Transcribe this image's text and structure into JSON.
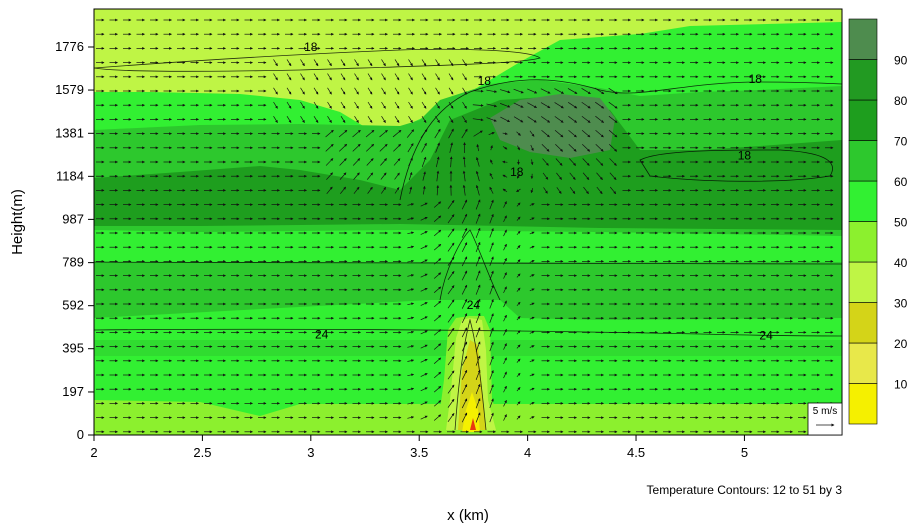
{
  "chart_data": {
    "type": "heatmap",
    "xlabel": "x (km)",
    "ylabel": "Height(m)",
    "xlim": [
      2,
      5.45
    ],
    "ylim": [
      0,
      1950
    ],
    "x_ticks": [
      2,
      2.5,
      3,
      3.5,
      4,
      4.5,
      5
    ],
    "x_tick_labels": [
      "2",
      "2.5",
      "3",
      "3.5",
      "4",
      "4.5",
      "5"
    ],
    "y_ticks": [
      0,
      197,
      395,
      592,
      789,
      987,
      1184,
      1381,
      1579,
      1776
    ],
    "y_tick_labels": [
      "0",
      "197",
      "395",
      "592",
      "789",
      "987",
      "1184",
      "1381",
      "1579",
      "1776"
    ],
    "colorbar": {
      "levels": [
        10,
        20,
        30,
        40,
        50,
        60,
        70,
        80,
        90
      ],
      "level_labels": [
        "10",
        "20",
        "30",
        "40",
        "50",
        "60",
        "70",
        "80",
        "90"
      ],
      "colors": [
        "#f5f000",
        "#e8e84a",
        "#d4d418",
        "#bff545",
        "#8cf02e",
        "#32f032",
        "#2dc82d",
        "#1e9e1e",
        "#229a22",
        "#4e8c4e"
      ]
    },
    "contour_note": "Temperature Contours: 12 to 51 by 3",
    "contour_labels": [
      {
        "text": "18",
        "x": 3.0,
        "y": 1776
      },
      {
        "text": "18",
        "x": 3.8,
        "y": 1620
      },
      {
        "text": "18",
        "x": 5.05,
        "y": 1630
      },
      {
        "text": "18",
        "x": 5.0,
        "y": 1280
      },
      {
        "text": "18",
        "x": 3.95,
        "y": 1205
      },
      {
        "text": "24",
        "x": 3.75,
        "y": 595
      },
      {
        "text": "24",
        "x": 3.05,
        "y": 460
      },
      {
        "text": "24",
        "x": 5.1,
        "y": 455
      }
    ],
    "reference_vector": {
      "label": "5 m/s"
    }
  }
}
